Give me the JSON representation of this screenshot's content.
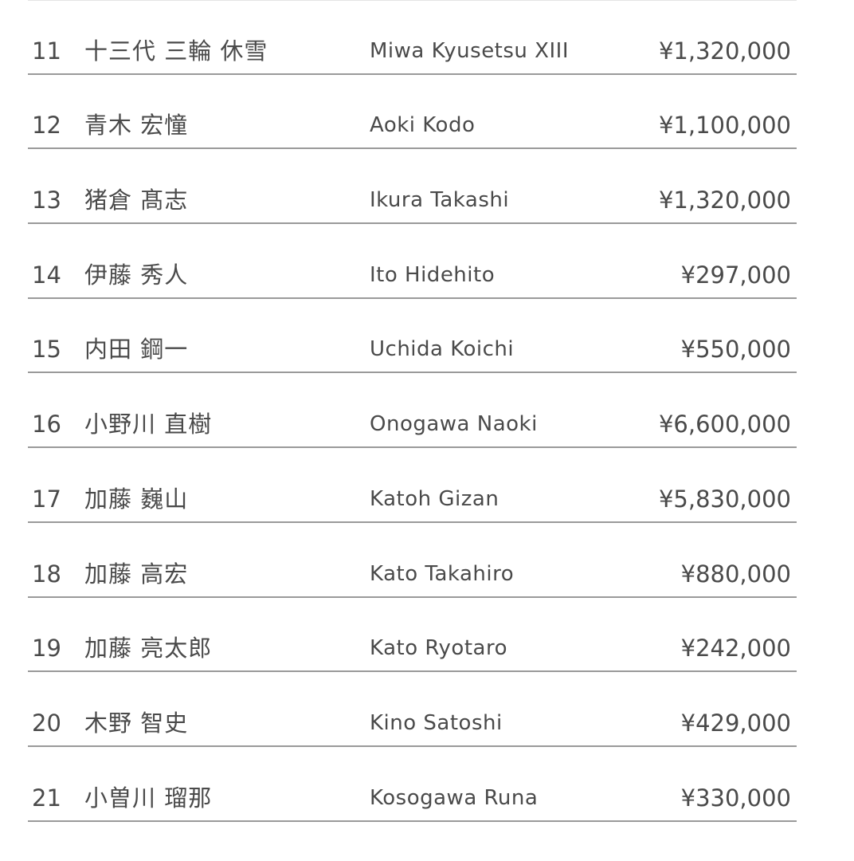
{
  "rows": [
    {
      "no": "11",
      "name_ja": "十三代 三輪 休雪",
      "name_en": "Miwa Kyusetsu XIII",
      "price": "¥1,320,000"
    },
    {
      "no": "12",
      "name_ja": "青木 宏憧",
      "name_en": "Aoki Kodo",
      "price": "¥1,100,000"
    },
    {
      "no": "13",
      "name_ja": "猪倉 髙志",
      "name_en": "Ikura Takashi",
      "price": "¥1,320,000"
    },
    {
      "no": "14",
      "name_ja": "伊藤 秀人",
      "name_en": "Ito Hidehito",
      "price": "¥297,000"
    },
    {
      "no": "15",
      "name_ja": "内田 鋼一",
      "name_en": "Uchida Koichi",
      "price": "¥550,000"
    },
    {
      "no": "16",
      "name_ja": "小野川 直樹",
      "name_en": "Onogawa Naoki",
      "price": "¥6,600,000"
    },
    {
      "no": "17",
      "name_ja": "加藤 巍山",
      "name_en": "Katoh Gizan",
      "price": "¥5,830,000"
    },
    {
      "no": "18",
      "name_ja": "加藤 高宏",
      "name_en": "Kato Takahiro",
      "price": "¥880,000"
    },
    {
      "no": "19",
      "name_ja": "加藤 亮太郎",
      "name_en": "Kato Ryotaro",
      "price": "¥242,000"
    },
    {
      "no": "20",
      "name_ja": "木野 智史",
      "name_en": "Kino Satoshi",
      "price": "¥429,000"
    },
    {
      "no": "21",
      "name_ja": "小曽川 瑠那",
      "name_en": "Kosogawa Runa",
      "price": "¥330,000"
    }
  ],
  "colors": {
    "text": "#4a4a4a",
    "divider": "#9a9a9a"
  }
}
